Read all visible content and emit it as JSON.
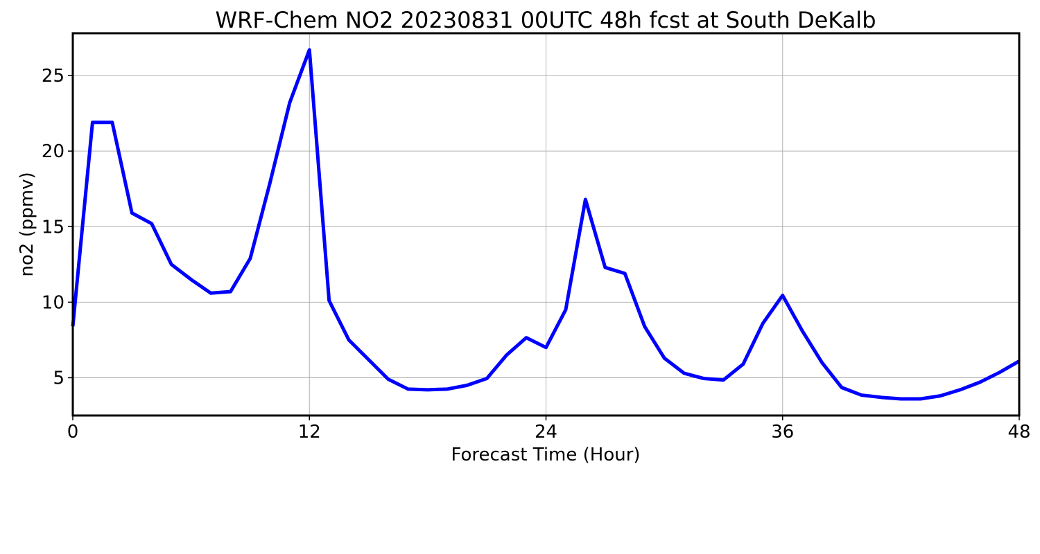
{
  "chart_data": {
    "type": "line",
    "title": "WRF-Chem NO2  20230831 00UTC 48h fcst at South DeKalb",
    "xlabel": "Forecast Time (Hour)",
    "ylabel": "no2  (ppmv)",
    "xlim": [
      0,
      48
    ],
    "ylim": [
      2.5,
      27.8
    ],
    "xticks": [
      0,
      12,
      24,
      36,
      48
    ],
    "yticks": [
      5,
      10,
      15,
      20,
      25
    ],
    "grid": true,
    "series": [
      {
        "color": "#0000ff",
        "x": [
          0,
          1,
          2,
          3,
          4,
          5,
          6,
          7,
          8,
          9,
          10,
          11,
          12,
          13,
          14,
          15,
          16,
          17,
          18,
          19,
          20,
          21,
          22,
          23,
          24,
          25,
          26,
          27,
          28,
          29,
          30,
          31,
          32,
          33,
          34,
          35,
          36,
          37,
          38,
          39,
          40,
          41,
          42,
          43,
          44,
          45,
          46,
          47,
          48
        ],
        "values": [
          8.4,
          21.9,
          21.9,
          15.9,
          15.2,
          12.5,
          11.5,
          10.6,
          10.7,
          12.9,
          17.9,
          23.2,
          26.7,
          10.1,
          7.5,
          6.2,
          4.9,
          4.25,
          4.2,
          4.25,
          4.5,
          4.95,
          6.5,
          7.65,
          7.0,
          9.5,
          16.8,
          12.3,
          11.9,
          8.4,
          6.3,
          5.3,
          4.95,
          4.85,
          5.9,
          8.6,
          10.45,
          8.1,
          6.0,
          4.35,
          3.85,
          3.7,
          3.6,
          3.6,
          3.8,
          4.2,
          4.7,
          5.35,
          6.1
        ]
      }
    ]
  }
}
